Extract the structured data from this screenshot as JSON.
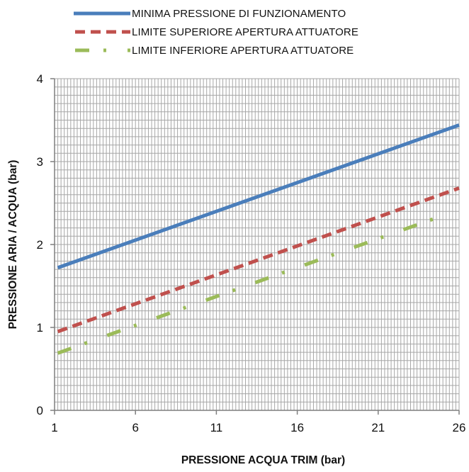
{
  "chart_data": {
    "type": "line",
    "xlabel": "PRESSIONE ACQUA TRIM (bar)",
    "ylabel": "PRESSIONE ARIA / ACQUA (bar)",
    "xlim": [
      1,
      26
    ],
    "ylim": [
      0,
      4
    ],
    "x_ticks": [
      "1",
      "6",
      "11",
      "16",
      "21",
      "26"
    ],
    "y_ticks": [
      "0",
      "1",
      "2",
      "3",
      "4"
    ],
    "grid": true,
    "legend_position": "top",
    "series": [
      {
        "name": "MINIMA PRESSIONE DI FUNZIONAMENTO",
        "color": "#4a7ebb",
        "style": "solid",
        "x": [
          1.2,
          26
        ],
        "y": [
          1.72,
          3.44
        ]
      },
      {
        "name": "LIMITE SUPERIORE APERTURA ATTUATORE",
        "color": "#c0504d",
        "style": "dashed",
        "x": [
          1.2,
          26
        ],
        "y": [
          0.95,
          2.68
        ]
      },
      {
        "name": "LIMITE INFERIORE APERTURA ATTUATORE",
        "color": "#9bbb59",
        "style": "dash-dot",
        "x": [
          1.2,
          25.3
        ],
        "y": [
          0.69,
          2.37
        ]
      }
    ]
  }
}
